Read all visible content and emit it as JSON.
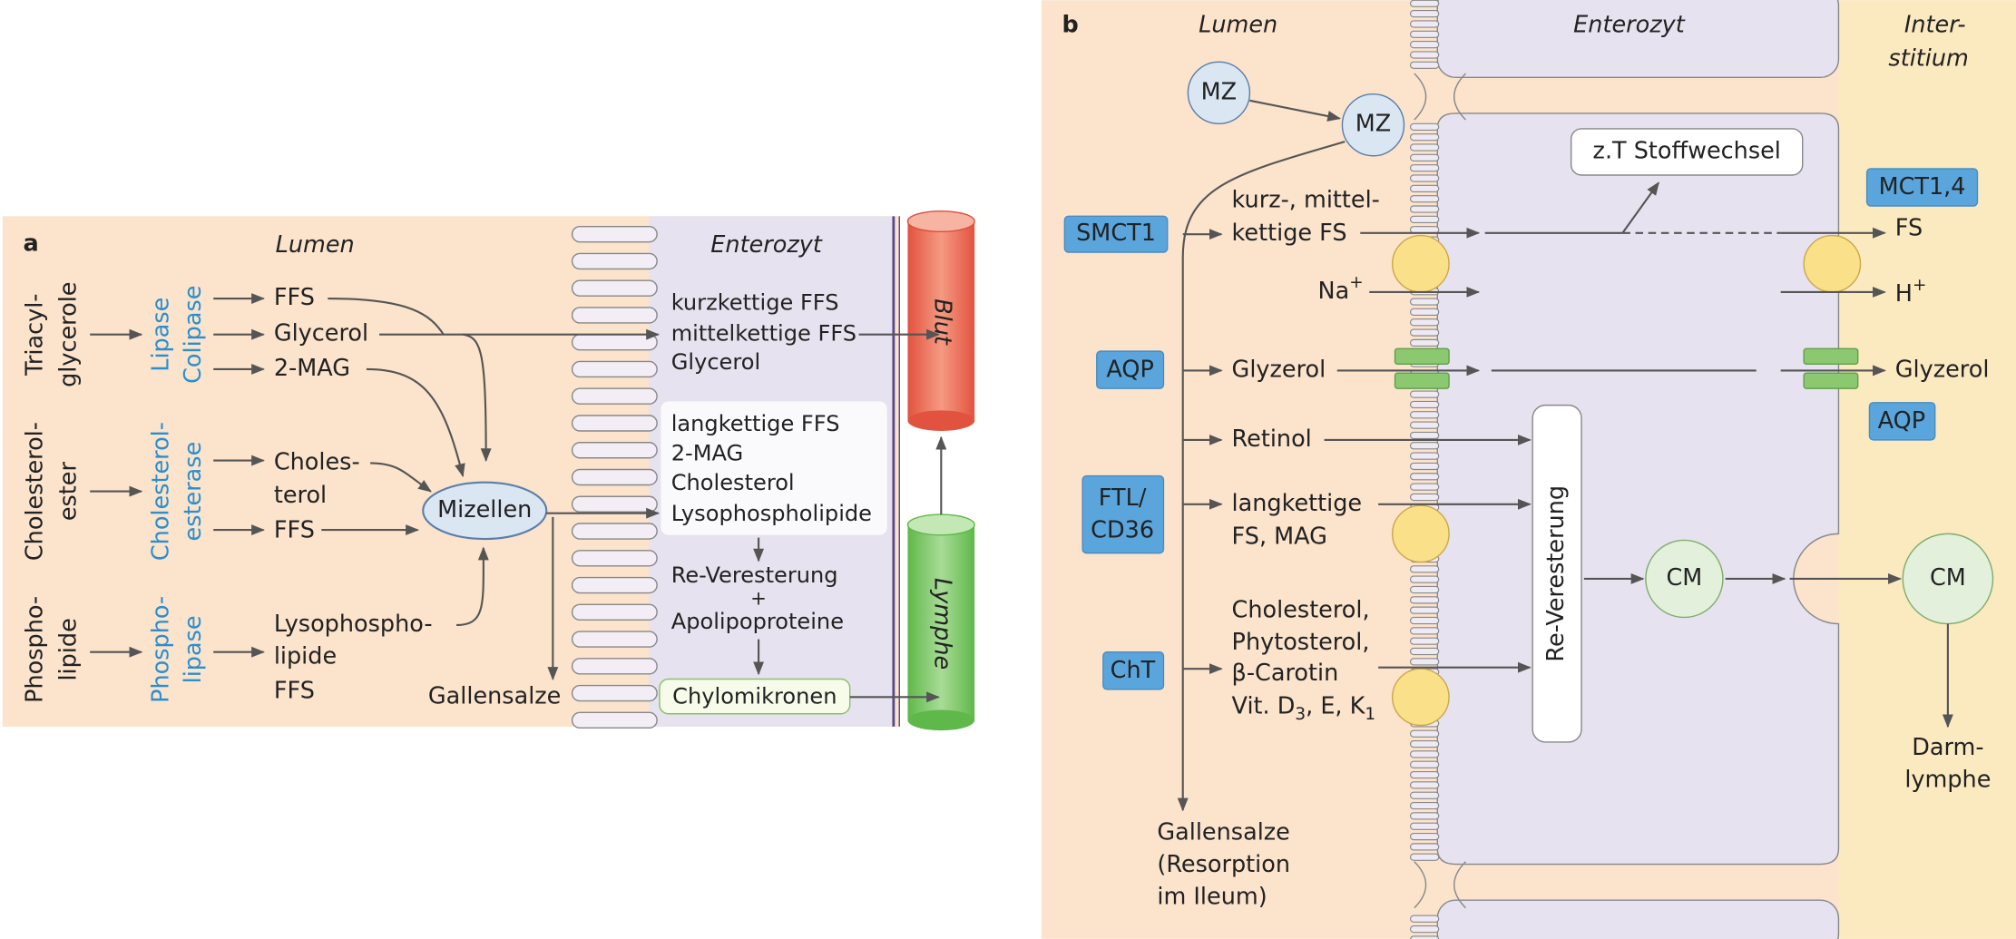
{
  "panel_a": {
    "label": "a",
    "lumen": "Lumen",
    "enterocyte": "Enterozyt",
    "blood": "Blut",
    "lymph": "Lymphe",
    "substrates": [
      [
        "Triacyl-",
        "glycerole"
      ],
      [
        "Cholesterol-",
        "ester"
      ],
      [
        "Phospho-",
        "lipide"
      ]
    ],
    "enzymes": [
      [
        "Lipase",
        "Colipase"
      ],
      [
        "Cholesterol-",
        "esterase"
      ],
      [
        "Phospho-",
        "lipase"
      ]
    ],
    "products": [
      [
        "FFS"
      ],
      [
        "Glycerol"
      ],
      [
        "2-MAG"
      ],
      [
        "Choles-",
        "terol"
      ],
      [
        "FFS"
      ],
      [
        "Lysophospho-",
        "lipide",
        "FFS"
      ]
    ],
    "micelles": "Mizellen",
    "bile_salts": "Gallensalze",
    "enterocyte_direct": [
      "kurzkettige FFS",
      "mittelkettige FFS",
      "Glycerol"
    ],
    "enterocyte_micellar": [
      "langkettige FFS",
      "2-MAG",
      "Cholesterol",
      "Lysophospholipide"
    ],
    "processing": [
      "Re-Veresterung",
      "+",
      "Apolipoproteine"
    ],
    "chylomicrons": "Chylomikronen"
  },
  "panel_b": {
    "label": "b",
    "lumen": "Lumen",
    "enterocyte": "Enterozyt",
    "interstitium": [
      "Inter-",
      "stitium"
    ],
    "micelles": [
      "MZ",
      "MZ"
    ],
    "metabolism": "z.T Stoffwechsel",
    "transporters": {
      "smct1": "SMCT1",
      "mct": "MCT1,4",
      "aqp_apical": "AQP",
      "aqp_basal": "AQP",
      "ftl": [
        "FTL/",
        "CD36"
      ],
      "cht": "ChT"
    },
    "short_medium_fa": [
      "kurz-, mittel-",
      "kettige FS"
    ],
    "fa_out": "FS",
    "sodium": {
      "base": "Na",
      "sup": "+"
    },
    "proton": {
      "base": "H",
      "sup": "+"
    },
    "glycerol_in": "Glyzerol",
    "glycerol_out": "Glyzerol",
    "retinol": "Retinol",
    "long_fa": [
      "langkettige",
      "FS, MAG"
    ],
    "reesterification": "Re-Veresterung",
    "chylomicrons": [
      "CM",
      "CM"
    ],
    "sterols": [
      "Cholesterol,",
      "Phytosterol,",
      "β-Carotin"
    ],
    "vitamins": {
      "text1": "Vit. D",
      "sub1": "3",
      "text2": ", E, K",
      "sub2": "1"
    },
    "lymph": [
      "Darm-",
      "lymphe"
    ],
    "bile_salts": [
      "Gallensalze",
      "(Resorption",
      "im Ileum)"
    ]
  }
}
